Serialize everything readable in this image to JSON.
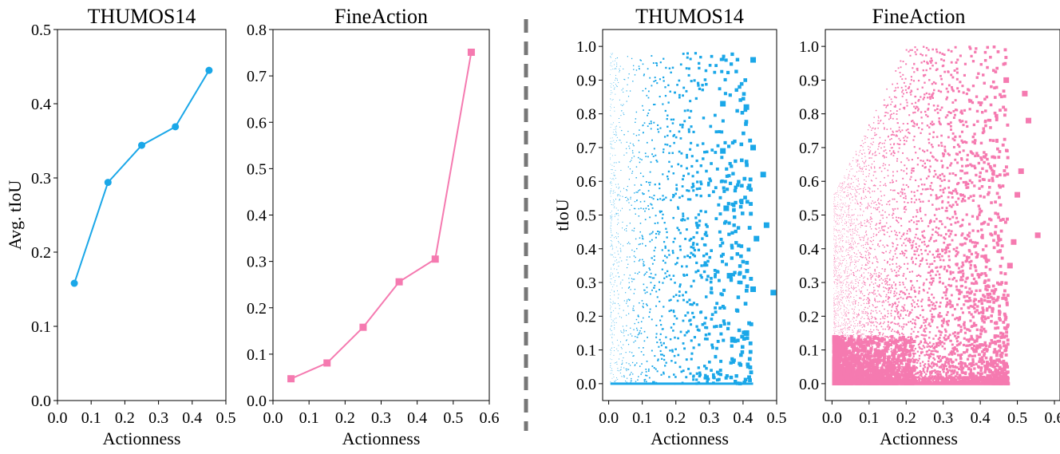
{
  "separator": {
    "color": "#777777"
  },
  "colors": {
    "blue": "#1aa7e8",
    "pink": "#f57ab0"
  },
  "chart_data": [
    {
      "type": "line",
      "title": "THUMOS14",
      "xlabel": "Actionness",
      "ylabel": "Avg. tIoU",
      "xlim": [
        0.0,
        0.5
      ],
      "ylim": [
        0.0,
        0.5
      ],
      "xticks": [
        "0.0",
        "0.1",
        "0.2",
        "0.3",
        "0.4",
        "0.5"
      ],
      "yticks": [
        "0.0",
        "0.1",
        "0.2",
        "0.3",
        "0.4",
        "0.5"
      ],
      "marker": "circle",
      "color": "#1aa7e8",
      "x": [
        0.05,
        0.15,
        0.25,
        0.35,
        0.45
      ],
      "y": [
        0.158,
        0.294,
        0.344,
        0.369,
        0.445
      ]
    },
    {
      "type": "line",
      "title": "FineAction",
      "xlabel": "Actionness",
      "ylabel": "",
      "xlim": [
        0.0,
        0.6
      ],
      "ylim": [
        0.0,
        0.8
      ],
      "xticks": [
        "0.0",
        "0.1",
        "0.2",
        "0.3",
        "0.4",
        "0.5",
        "0.6"
      ],
      "yticks": [
        "0.0",
        "0.1",
        "0.2",
        "0.3",
        "0.4",
        "0.5",
        "0.6",
        "0.7",
        "0.8"
      ],
      "marker": "square",
      "color": "#f57ab0",
      "x": [
        0.05,
        0.15,
        0.25,
        0.35,
        0.45,
        0.55
      ],
      "y": [
        0.047,
        0.081,
        0.158,
        0.256,
        0.305,
        0.751
      ]
    },
    {
      "type": "scatter",
      "title": "THUMOS14",
      "xlabel": "Actionness",
      "ylabel": "tIoU",
      "xlim": [
        -0.018,
        0.5
      ],
      "ylim": [
        -0.05,
        1.05
      ],
      "xticks": [
        "0.0",
        "0.1",
        "0.2",
        "0.3",
        "0.4",
        "0.5"
      ],
      "yticks": [
        "0.0",
        "0.1",
        "0.2",
        "0.3",
        "0.4",
        "0.5",
        "0.6",
        "0.7",
        "0.8",
        "0.9",
        "1.0"
      ],
      "color": "#1aa7e8",
      "point_count": 1500,
      "zero_band_max_x": 0.43,
      "highlighted_points": [
        {
          "x": 0.43,
          "y": 0.96
        },
        {
          "x": 0.49,
          "y": 0.27
        },
        {
          "x": 0.47,
          "y": 0.47
        },
        {
          "x": 0.46,
          "y": 0.62
        },
        {
          "x": 0.43,
          "y": 0.7
        },
        {
          "x": 0.41,
          "y": 0.82
        },
        {
          "x": 0.34,
          "y": 0.83
        },
        {
          "x": 0.44,
          "y": 0.43
        },
        {
          "x": 0.43,
          "y": 0.28
        },
        {
          "x": 0.41,
          "y": 0.15
        },
        {
          "x": 0.37,
          "y": 0.13
        },
        {
          "x": 0.36,
          "y": 0.32
        },
        {
          "x": 0.35,
          "y": 0.52
        },
        {
          "x": 0.34,
          "y": 0.69
        }
      ]
    },
    {
      "type": "scatter",
      "title": "FineAction",
      "xlabel": "Actionness",
      "ylabel": "",
      "xlim": [
        -0.018,
        0.615
      ],
      "ylim": [
        -0.05,
        1.05
      ],
      "xticks": [
        "0.0",
        "0.1",
        "0.2",
        "0.3",
        "0.4",
        "0.5",
        "0.6"
      ],
      "yticks": [
        "0.0",
        "0.1",
        "0.2",
        "0.3",
        "0.4",
        "0.5",
        "0.6",
        "0.7",
        "0.8",
        "0.9",
        "1.0"
      ],
      "color": "#f57ab0",
      "point_count": 6000,
      "zero_band_max_x": 0.48,
      "highlighted_points": [
        {
          "x": 0.555,
          "y": 0.44
        },
        {
          "x": 0.52,
          "y": 0.86
        },
        {
          "x": 0.53,
          "y": 0.78
        },
        {
          "x": 0.51,
          "y": 0.63
        },
        {
          "x": 0.5,
          "y": 0.56
        },
        {
          "x": 0.49,
          "y": 0.42
        },
        {
          "x": 0.48,
          "y": 0.35
        },
        {
          "x": 0.47,
          "y": 0.9
        }
      ]
    }
  ]
}
